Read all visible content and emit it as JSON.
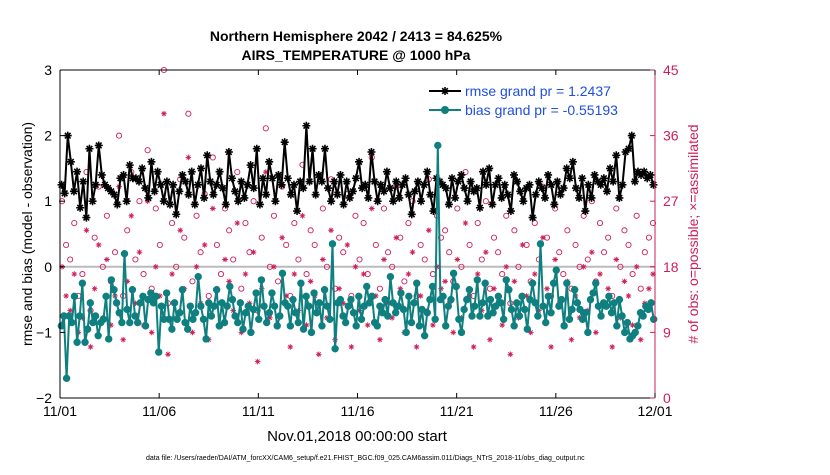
{
  "chart_data": {
    "type": "line",
    "title_line1": "Northern Hemisphere 2042 / 2413 = 84.625%",
    "title_line2": "AIRS_TEMPERATURE @ 1000 hPa",
    "xlabel": "Nov.01,2018 00:00:00 start",
    "ylabel_left": "rmse and bias (model - observation)",
    "ylabel_right": "# of obs: o=possible; ×=assimilated",
    "footer": "data file: /Users/raeder/DAI/ATM_forcXX/CAM6_setup/f.e21.FHIST_BGC.f09_025.CAM6assim.011/Diags_NTrS_2018-11/obs_diag_output.nc",
    "xlim": [
      0,
      30
    ],
    "ylim_left": [
      -2,
      3
    ],
    "ylim_right": [
      0,
      45
    ],
    "x_ticks": [
      0,
      5,
      10,
      15,
      20,
      25,
      30
    ],
    "x_tick_labels": [
      "11/01",
      "11/06",
      "11/11",
      "11/16",
      "11/21",
      "11/26",
      "12/01"
    ],
    "y_ticks_left": [
      -2,
      -1,
      0,
      1,
      2,
      3
    ],
    "y_tick_labels_left": [
      "−2",
      "−1",
      "0",
      "1",
      "2",
      "3"
    ],
    "y_ticks_right": [
      0,
      9,
      18,
      27,
      36,
      45
    ],
    "y_tick_labels_right": [
      "0",
      "9",
      "18",
      "27",
      "36",
      "45"
    ],
    "legend": {
      "placement": "top-right",
      "entries": [
        "rmse grand pr = 1.2437",
        "bias grand pr = -0.55193"
      ]
    },
    "colors": {
      "rmse": "#000000",
      "bias": "#0f7f7f",
      "obs": "#cc1f5a",
      "legend_text": "#1f4fdc",
      "zero_line": "#bbbbbb"
    },
    "series": [
      {
        "name": "rmse",
        "marker": "star",
        "values": [
          1.25,
          1.12,
          2.0,
          1.6,
          1.15,
          1.45,
          0.9,
          1.3,
          0.75,
          1.8,
          1.0,
          1.25,
          1.85,
          1.4,
          1.25,
          1.2,
          1.15,
          1.1,
          0.95,
          1.35,
          1.4,
          1.0,
          1.55,
          1.35,
          1.35,
          1.3,
          1.5,
          1.2,
          1.05,
          1.6,
          1.15,
          1.45,
          1.25,
          1.0,
          1.3,
          0.95,
          1.25,
          0.8,
          1.15,
          1.4,
          1.3,
          1.1,
          1.45,
          0.95,
          1.25,
          1.5,
          1.05,
          1.7,
          1.3,
          1.1,
          1.25,
          1.45,
          1.2,
          0.95,
          1.75,
          1.35,
          1.15,
          1.0,
          1.3,
          1.05,
          1.25,
          1.55,
          1.2,
          1.8,
          0.95,
          1.35,
          1.1,
          1.6,
          1.35,
          1.0,
          1.4,
          1.25,
          1.9,
          1.35,
          1.1,
          1.25,
          0.85,
          1.3,
          1.2,
          2.15,
          1.3,
          1.8,
          1.1,
          1.4,
          1.3,
          1.8,
          1.2,
          1.0,
          1.3,
          1.1,
          1.4,
          0.95,
          1.3,
          1.05,
          1.15,
          1.35,
          1.6,
          1.2,
          1.25,
          1.05,
          1.75,
          1.3,
          1.0,
          1.25,
          1.15,
          1.45,
          1.2,
          1.0,
          1.3,
          1.05,
          1.25,
          1.35,
          1.1,
          0.8,
          1.15,
          1.3,
          1.0,
          1.25,
          1.45,
          1.1,
          0.85,
          1.35,
          1.3,
          1.25,
          1.2,
          0.95,
          1.35,
          1.05,
          1.3,
          1.4,
          1.2,
          1.0,
          1.3,
          1.15,
          1.2,
          0.9,
          1.45,
          1.25,
          1.5,
          0.95,
          1.25,
          1.35,
          1.05,
          1.25,
          1.1,
          0.85,
          1.4,
          1.3,
          1.15,
          1.0,
          1.2,
          1.25,
          0.75,
          1.1,
          1.3,
          1.2,
          1.05,
          1.4,
          1.25,
          0.95,
          1.3,
          1.1,
          1.2,
          1.5,
          1.35,
          1.6,
          1.2,
          1.05,
          1.35,
          0.85,
          1.25,
          1.05,
          1.4,
          1.3,
          1.25,
          1.35,
          1.15,
          1.5,
          1.3,
          1.7,
          1.05,
          1.25,
          1.75,
          1.8,
          2.0,
          1.3,
          1.45,
          1.4,
          1.45,
          1.35,
          1.4,
          1.25
        ]
      },
      {
        "name": "bias",
        "marker": "circle",
        "values": [
          -0.9,
          -0.75,
          -1.7,
          -0.75,
          -0.85,
          -0.45,
          -1.15,
          -0.75,
          -0.25,
          -1.15,
          -0.95,
          -0.55,
          -0.85,
          -0.75,
          -1.05,
          -0.85,
          -0.8,
          -0.45,
          -1.1,
          -0.2,
          -0.35,
          -0.55,
          -0.7,
          -0.85,
          0.2,
          -0.65,
          -0.85,
          -0.35,
          -0.75,
          -0.85,
          -0.55,
          -0.45,
          -0.9,
          -0.5,
          -0.4,
          -0.55,
          -0.45,
          -1.3,
          -0.6,
          -0.8,
          -0.4,
          -0.8,
          -0.95,
          -0.55,
          -0.8,
          -0.7,
          -0.35,
          -0.85,
          -0.95,
          -0.6,
          -0.8,
          -0.7,
          -0.15,
          -0.6,
          -0.8,
          -1.1,
          -0.55,
          -0.75,
          -0.6,
          -0.35,
          -0.9,
          -0.55,
          -0.85,
          -0.6,
          -0.3,
          -0.5,
          -0.75,
          -0.85,
          -0.55,
          -0.95,
          -0.7,
          -0.6,
          -1.0,
          -0.65,
          -0.4,
          -0.8,
          -0.2,
          -0.6,
          -0.85,
          -0.7,
          -0.4,
          -0.6,
          -0.9,
          -0.75,
          -0.1,
          -0.55,
          -0.6,
          -0.9,
          -0.5,
          -0.7,
          -0.85,
          -0.25,
          -0.95,
          -0.45,
          -0.6,
          -1.0,
          -0.4,
          -0.7,
          -0.55,
          -0.9,
          -0.35,
          -0.6,
          -0.8,
          0.35,
          -1.25,
          -0.55,
          -0.5,
          -0.75,
          -0.85,
          -0.6,
          -0.5,
          -0.7,
          -0.9,
          -0.45,
          -0.8,
          -0.6,
          -0.3,
          -0.55,
          -0.45,
          -0.85,
          -0.9,
          -0.6,
          -0.7,
          -0.5,
          -0.75,
          -0.15,
          -0.55,
          -0.7,
          -0.6,
          -0.4,
          -0.65,
          -1.0,
          -0.45,
          -0.85,
          -0.55,
          -0.25,
          -0.9,
          -0.65,
          -1.05,
          -0.7,
          -0.5,
          -0.3,
          -0.8,
          1.85,
          -0.5,
          -0.45,
          -0.9,
          -0.6,
          -0.5,
          -0.1,
          -0.3,
          -0.8,
          -1.0,
          -0.65,
          -0.5,
          -0.35,
          -0.75,
          -0.6,
          -0.2,
          -0.75,
          -0.55,
          -0.25,
          -0.75,
          -0.5,
          -0.7,
          -0.6,
          -0.45,
          -0.55,
          -0.8,
          -0.2,
          -0.35,
          -0.65,
          -0.9,
          -0.55,
          -0.75,
          -0.45,
          -0.65,
          -0.95,
          -0.5,
          -0.25,
          -0.55,
          -0.75,
          0.35,
          -0.6,
          -0.85,
          -0.45,
          -0.7,
          -0.25,
          -0.05,
          -0.6,
          -0.5,
          -0.9,
          -0.25,
          -0.8,
          -0.65,
          -0.35,
          -0.55,
          -0.65,
          -0.8,
          -0.7,
          -1.0,
          -0.5,
          -0.4,
          -0.25,
          -0.6,
          -0.75,
          -0.55,
          -0.6,
          -0.45,
          -0.7,
          -0.55,
          -0.9,
          -0.5,
          -0.75,
          -1.0,
          -0.85,
          -1.1,
          -1.05,
          -1.0,
          -0.9,
          -0.7,
          -0.75,
          -0.6,
          -0.65,
          -0.55,
          -0.8
        ]
      }
    ],
    "obs_possible": [
      27,
      21,
      19,
      24,
      14,
      17,
      31,
      12,
      22,
      29,
      18,
      25,
      16,
      20,
      36,
      14,
      23,
      31,
      19,
      27,
      17,
      34,
      15,
      26,
      21,
      45,
      13,
      24,
      18,
      30,
      22,
      39,
      16,
      25,
      20,
      28,
      14,
      33,
      21,
      17,
      26,
      23,
      19,
      31,
      15,
      24,
      20,
      27,
      12,
      22,
      37,
      18,
      25,
      16,
      29,
      21,
      14,
      24,
      19,
      32,
      17,
      23,
      21,
      13,
      26,
      18,
      30,
      15,
      22,
      20,
      28,
      14,
      25,
      19,
      24,
      17,
      33,
      21,
      15,
      26,
      20,
      18,
      29,
      22,
      16,
      24,
      27,
      14,
      21,
      19,
      30,
      17,
      25,
      22,
      23,
      20,
      16,
      26,
      18,
      31,
      21,
      14,
      24,
      19,
      27,
      15,
      22,
      20,
      17,
      25,
      13,
      23,
      18,
      28,
      21,
      16,
      24,
      19,
      29,
      22,
      14,
      26,
      20,
      17,
      23,
      15,
      21,
      18,
      25,
      19,
      27,
      16,
      24,
      20,
      22,
      14,
      26,
      18,
      23,
      21,
      17,
      25,
      15,
      20,
      22,
      24
    ],
    "obs_assimilated": [
      18,
      14,
      12,
      17,
      9,
      11,
      23,
      7,
      15,
      21,
      11,
      19,
      10,
      14,
      29,
      8,
      16,
      25,
      13,
      20,
      10,
      27,
      9,
      18,
      14,
      39,
      6,
      17,
      11,
      23,
      15,
      33,
      9,
      18,
      13,
      21,
      8,
      26,
      15,
      10,
      19,
      16,
      12,
      24,
      9,
      17,
      13,
      20,
      5,
      15,
      31,
      11,
      18,
      10,
      22,
      14,
      7,
      17,
      12,
      25,
      10,
      16,
      14,
      6,
      19,
      11,
      23,
      8,
      15,
      13,
      21,
      7,
      18,
      12,
      17,
      10,
      26,
      14,
      8,
      19,
      13,
      11,
      22,
      15,
      9,
      17,
      20,
      7,
      14,
      12,
      23,
      10,
      18,
      15,
      16,
      13,
      9,
      19,
      11,
      24,
      14,
      7,
      17,
      12,
      20,
      8,
      15,
      13,
      10,
      18,
      6,
      16,
      11,
      21,
      14,
      9,
      17,
      12,
      22,
      15,
      7,
      19,
      13,
      10,
      16,
      8,
      14,
      11,
      18,
      12,
      20,
      9,
      17,
      13,
      15,
      7,
      19,
      11,
      16,
      14,
      10,
      18,
      8,
      13,
      15,
      17
    ]
  }
}
